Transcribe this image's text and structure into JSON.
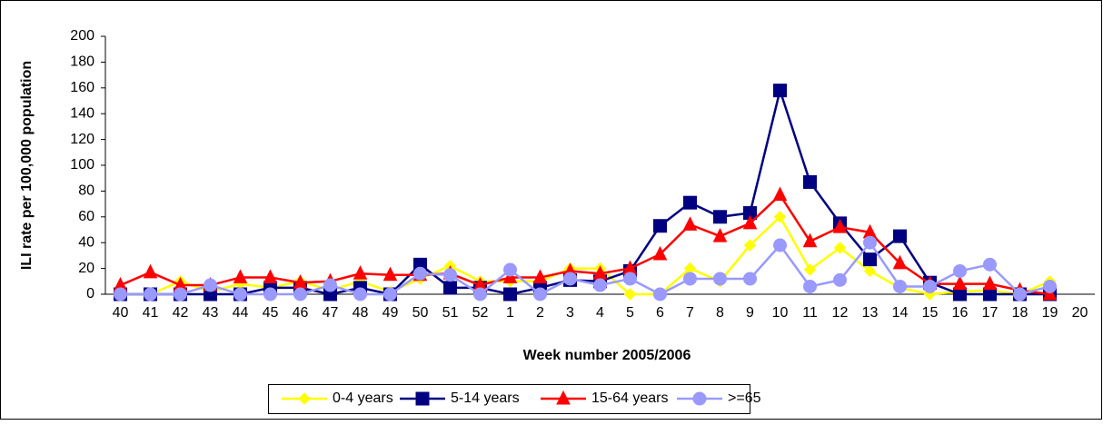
{
  "chart_data": {
    "type": "line",
    "y_label": "ILI rate per 100,000 population",
    "x_label": "Week number 2005/2006",
    "categories": [
      "40",
      "41",
      "42",
      "43",
      "44",
      "45",
      "46",
      "47",
      "48",
      "49",
      "50",
      "51",
      "52",
      "1",
      "2",
      "3",
      "4",
      "5",
      "6",
      "7",
      "8",
      "9",
      "10",
      "11",
      "12",
      "13",
      "14",
      "15",
      "16",
      "17",
      "18",
      "19",
      "20"
    ],
    "ylim": [
      0,
      200
    ],
    "yticks": [
      0,
      20,
      40,
      60,
      80,
      100,
      120,
      140,
      160,
      180,
      200
    ],
    "grid": false,
    "legend": "bottom",
    "series": [
      {
        "name": "0-4 years",
        "color": "#ffff00",
        "marker": "diamond",
        "values": [
          0,
          0,
          10,
          2,
          8,
          5,
          10,
          3,
          10,
          2,
          12,
          22,
          10,
          10,
          10,
          20,
          20,
          0,
          0,
          20,
          10,
          38,
          60,
          19,
          36,
          18,
          5,
          0,
          2,
          3,
          0,
          10,
          null
        ]
      },
      {
        "name": "5-14 years",
        "color": "#000080",
        "marker": "square",
        "values": [
          0,
          0,
          0,
          0,
          0,
          5,
          5,
          0,
          5,
          0,
          23,
          5,
          5,
          0,
          5,
          11,
          10,
          18,
          53,
          71,
          60,
          63,
          158,
          87,
          55,
          27,
          45,
          9,
          0,
          0,
          0,
          0,
          null
        ]
      },
      {
        "name": "15-64 years",
        "color": "#ff0000",
        "marker": "triangle",
        "values": [
          7,
          17,
          7,
          7,
          13,
          13,
          9,
          10,
          16,
          15,
          15,
          16,
          7,
          13,
          13,
          18,
          16,
          20,
          31,
          54,
          45,
          55,
          77,
          41,
          52,
          48,
          24,
          8,
          8,
          8,
          3,
          0,
          null
        ]
      },
      {
        "name": ">=65",
        "color": "#9999ff",
        "marker": "circle",
        "values": [
          0,
          0,
          0,
          7,
          0,
          0,
          0,
          7,
          0,
          0,
          16,
          15,
          0,
          19,
          0,
          12,
          7,
          12,
          0,
          12,
          12,
          12,
          38,
          6,
          11,
          40,
          6,
          6,
          18,
          23,
          0,
          6,
          null
        ]
      }
    ]
  }
}
